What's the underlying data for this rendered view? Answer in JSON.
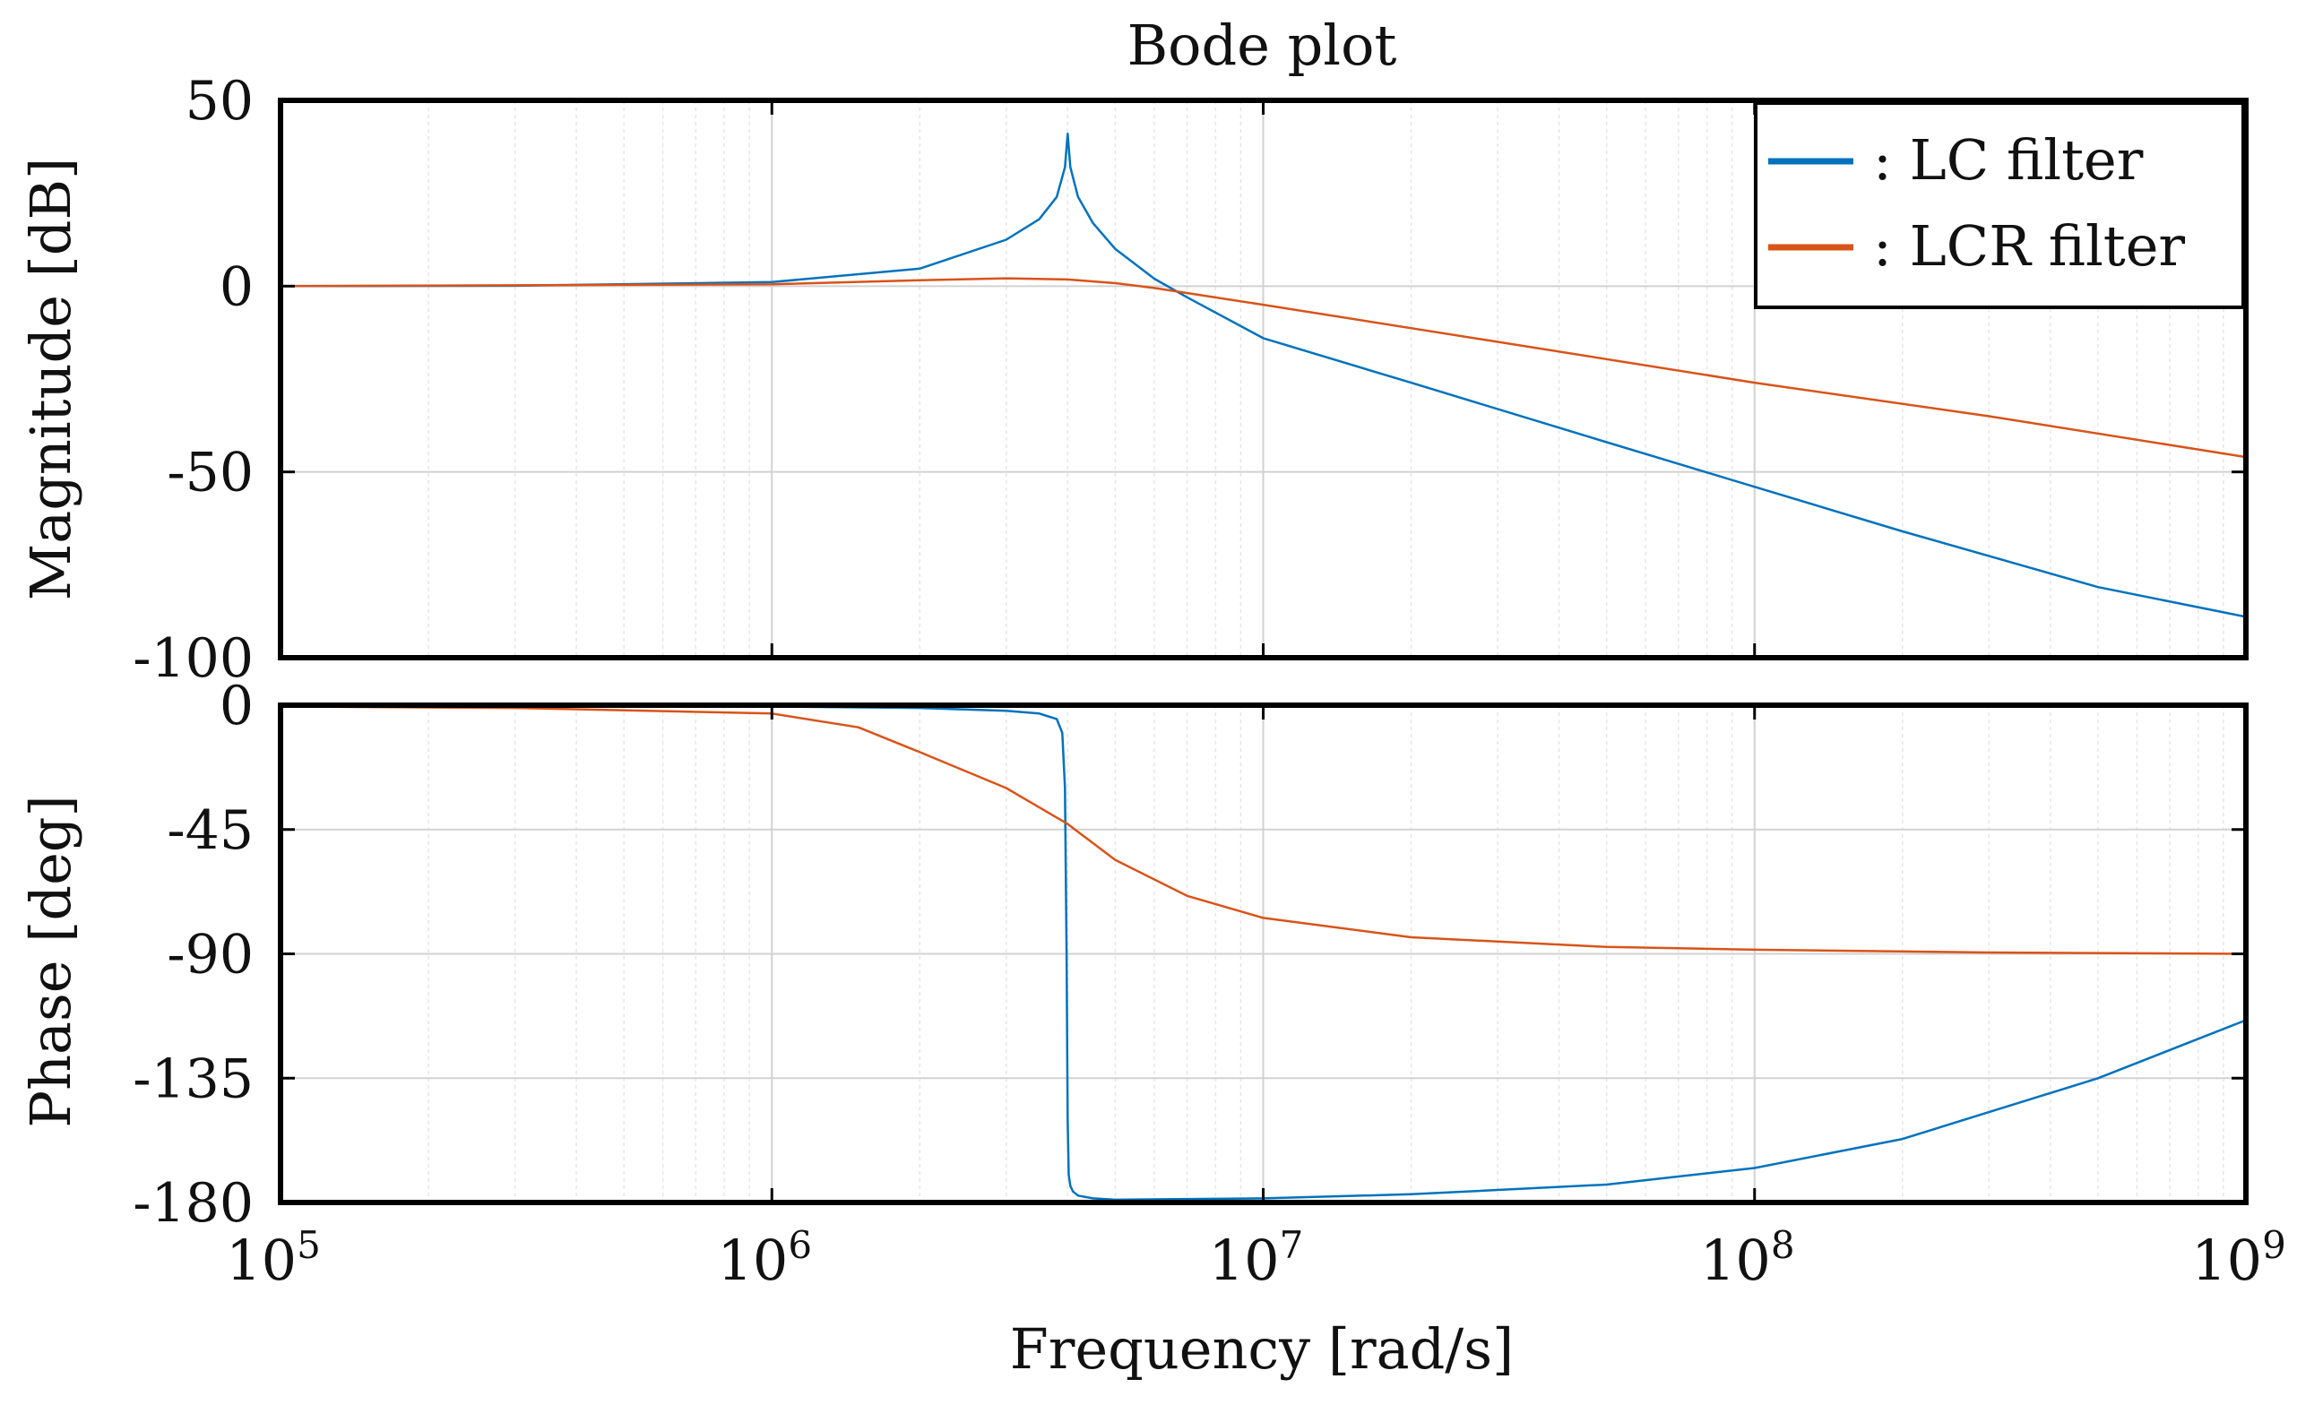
{
  "chart_data": {
    "type": "line",
    "title": "Bode plot",
    "xlabel": "Frequency [rad/s]",
    "xscale": "log",
    "xlim": [
      100000,
      1000000000
    ],
    "x_ticks": [
      {
        "base": "10",
        "exp": "5"
      },
      {
        "base": "10",
        "exp": "6"
      },
      {
        "base": "10",
        "exp": "7"
      },
      {
        "base": "10",
        "exp": "8"
      },
      {
        "base": "10",
        "exp": "9"
      }
    ],
    "grid": true,
    "legend": {
      "placement": "top-right",
      "entries": [
        {
          "label": ": LC filter",
          "color": "#0072bd"
        },
        {
          "label": ": LCR filter",
          "color": "#d95319"
        }
      ]
    },
    "magnitude": {
      "ylabel": "Magnitude [dB]",
      "ylim": [
        -100,
        50
      ],
      "yticks": [
        50,
        0,
        -50,
        -100
      ],
      "ytick_labels": [
        "50",
        "0",
        "-50",
        "-100"
      ],
      "series": [
        {
          "color": "#0072bd",
          "x": [
            100000,
            300000,
            1000000,
            2000000,
            3000000,
            3500000,
            3800000,
            3950000,
            4000000,
            4050000,
            4200000,
            4500000,
            5000000,
            6000000,
            7000000,
            10000000,
            20000000,
            50000000,
            100000000,
            200000000,
            500000000,
            1000000000
          ],
          "y": [
            0,
            0.1,
            1.1,
            4.7,
            12.5,
            18,
            24,
            32,
            41,
            32,
            24,
            17,
            10,
            2,
            -3,
            -14,
            -26,
            -42,
            -54,
            -66,
            -81,
            -89
          ]
        },
        {
          "color": "#d95319",
          "x": [
            100000,
            1000000,
            2000000,
            3000000,
            4000000,
            5000000,
            6000000,
            10000000,
            30000000,
            100000000,
            300000000,
            1000000000
          ],
          "y": [
            0,
            0.5,
            1.6,
            2.1,
            1.8,
            0.8,
            -0.5,
            -5,
            -15,
            -26,
            -35,
            -46
          ]
        }
      ]
    },
    "phase": {
      "ylabel": "Phase [deg]",
      "ylim": [
        -180,
        0
      ],
      "yticks": [
        0,
        -45,
        -90,
        -135,
        -180
      ],
      "ytick_labels": [
        "0",
        "-45",
        "-90",
        "-135",
        "-180"
      ],
      "series": [
        {
          "color": "#0072bd",
          "x": [
            100000,
            1000000,
            2000000,
            3000000,
            3500000,
            3800000,
            3900000,
            3950000,
            3980000,
            4000000,
            4020000,
            4050000,
            4100000,
            4200000,
            4500000,
            5000000,
            10000000,
            20000000,
            50000000,
            100000000,
            200000000,
            500000000,
            1000000000
          ],
          "y": [
            0,
            -0.5,
            -1,
            -2,
            -3,
            -5,
            -10,
            -30,
            -90,
            -150,
            -170,
            -174,
            -176,
            -177.5,
            -178.5,
            -179,
            -178.5,
            -177,
            -173.5,
            -167.5,
            -157,
            -135,
            -114
          ]
        },
        {
          "color": "#d95319",
          "x": [
            100000,
            300000,
            1000000,
            1500000,
            2000000,
            3000000,
            4000000,
            5000000,
            7000000,
            10000000,
            20000000,
            50000000,
            100000000,
            300000000,
            1000000000
          ],
          "y": [
            -0.5,
            -1,
            -3,
            -8,
            -17,
            -30,
            -43,
            -56,
            -69,
            -77,
            -84,
            -87.5,
            -88.5,
            -89.5,
            -90
          ]
        }
      ]
    }
  }
}
